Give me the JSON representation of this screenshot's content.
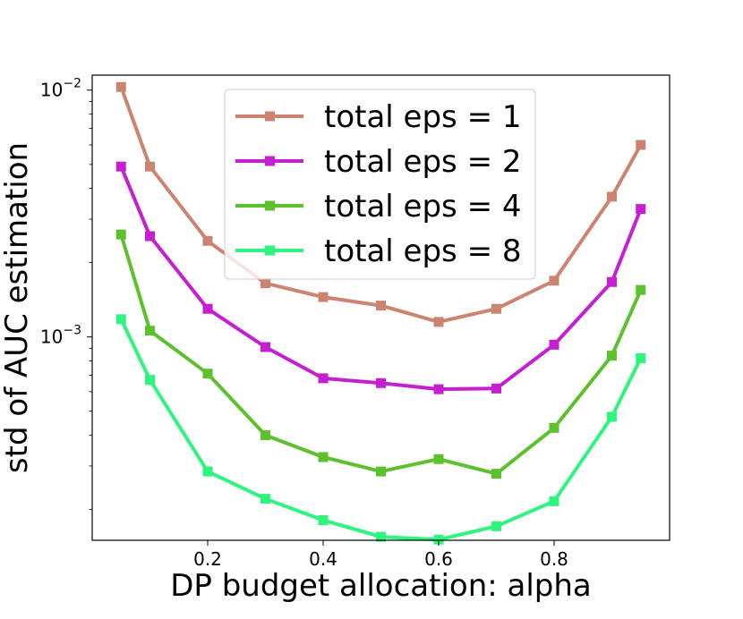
{
  "chart_data": {
    "type": "line",
    "xlabel": "DP budget allocation: alpha",
    "ylabel": "std of AUC estimation",
    "yscale": "log",
    "xlim": [
      0.0,
      1.0
    ],
    "ylim": [
      0.00015,
      0.0115
    ],
    "x_ticks": [
      {
        "value": 0.2,
        "label": "0.2"
      },
      {
        "value": 0.4,
        "label": "0.4"
      },
      {
        "value": 0.6,
        "label": "0.6"
      },
      {
        "value": 0.8,
        "label": "0.8"
      }
    ],
    "y_ticks": [
      {
        "value": 0.01,
        "base": "10",
        "exp": "−2"
      },
      {
        "value": 0.001,
        "base": "10",
        "exp": "−3"
      }
    ],
    "grid": false,
    "legend_position": "top-center",
    "x": [
      0.05,
      0.1,
      0.2,
      0.3,
      0.4,
      0.5,
      0.6,
      0.7,
      0.8,
      0.9,
      0.95
    ],
    "series": [
      {
        "name": "total eps = 1",
        "color": "#cc8470",
        "values": [
          0.0103,
          0.0049,
          0.00245,
          0.00165,
          0.00145,
          0.00134,
          0.00115,
          0.0013,
          0.00169,
          0.0037,
          0.006
        ]
      },
      {
        "name": "total eps = 2",
        "color": "#c61ed1",
        "values": [
          0.0049,
          0.00256,
          0.0013,
          0.00091,
          0.00068,
          0.00065,
          0.000614,
          0.000618,
          0.00093,
          0.00167,
          0.0033
        ]
      },
      {
        "name": "total eps = 4",
        "color": "#5cc12c",
        "values": [
          0.0026,
          0.00106,
          0.00071,
          0.0004,
          0.000326,
          0.000285,
          0.00032,
          0.000279,
          0.000428,
          0.00084,
          0.00155
        ]
      },
      {
        "name": "total eps = 8",
        "color": "#2ef57e",
        "values": [
          0.00118,
          0.00067,
          0.000285,
          0.000221,
          0.000181,
          0.000155,
          0.000151,
          0.000171,
          0.000216,
          0.000475,
          0.00082
        ]
      }
    ]
  }
}
